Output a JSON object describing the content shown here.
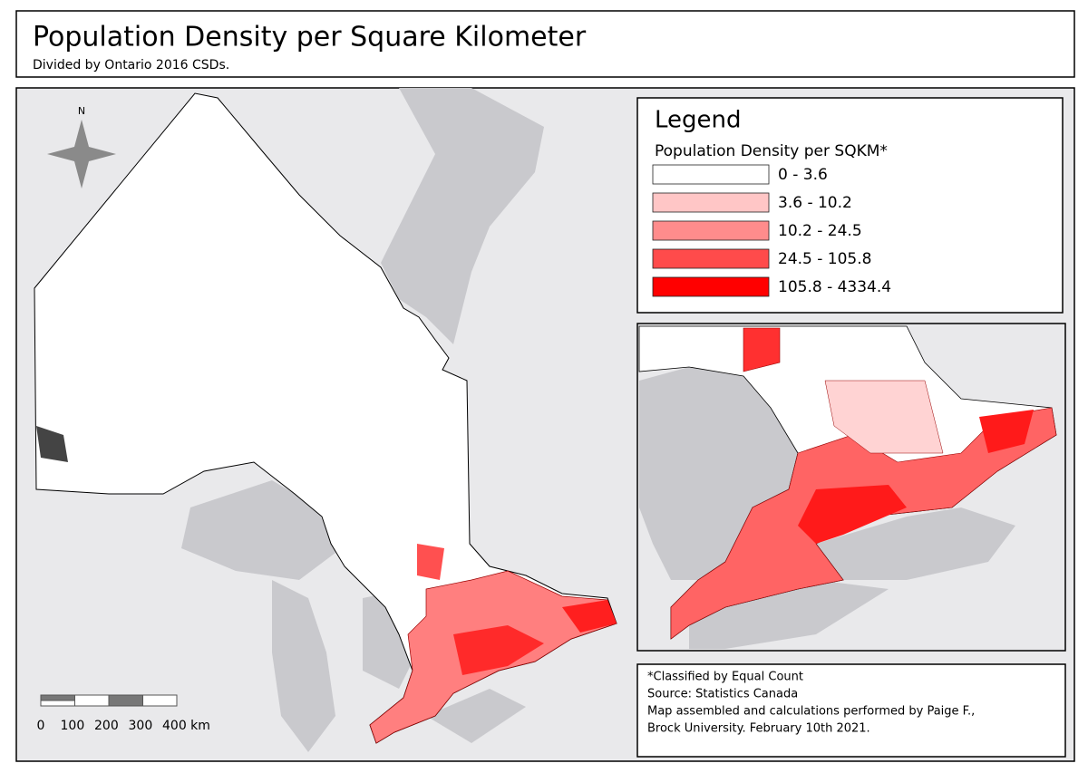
{
  "header": {
    "title": "Population Density per Square Kilometer",
    "subtitle": "Divided by Ontario  2016 CSDs."
  },
  "north_arrow": {
    "label": "N"
  },
  "legend": {
    "title": "Legend",
    "subtitle": "Population Density per SQKM*",
    "items": [
      {
        "label": "0 - 3.6",
        "color": "#ffffff"
      },
      {
        "label": "3.6 - 10.2",
        "color": "#ffc6c6"
      },
      {
        "label": "10.2 - 24.5",
        "color": "#ff8c8c"
      },
      {
        "label": "24.5 - 105.8",
        "color": "#ff4b4b"
      },
      {
        "label": "105.8 - 4334.4",
        "color": "#ff0000"
      }
    ]
  },
  "scale_bar": {
    "labels": [
      "0",
      "100",
      "200",
      "300",
      "400 km"
    ]
  },
  "notes": [
    "*Classified by Equal Count",
    "Source: Statistics Canada",
    "Map assembled and calculations performed by Paige F.,",
    "Brock University. February 10th 2021."
  ]
}
